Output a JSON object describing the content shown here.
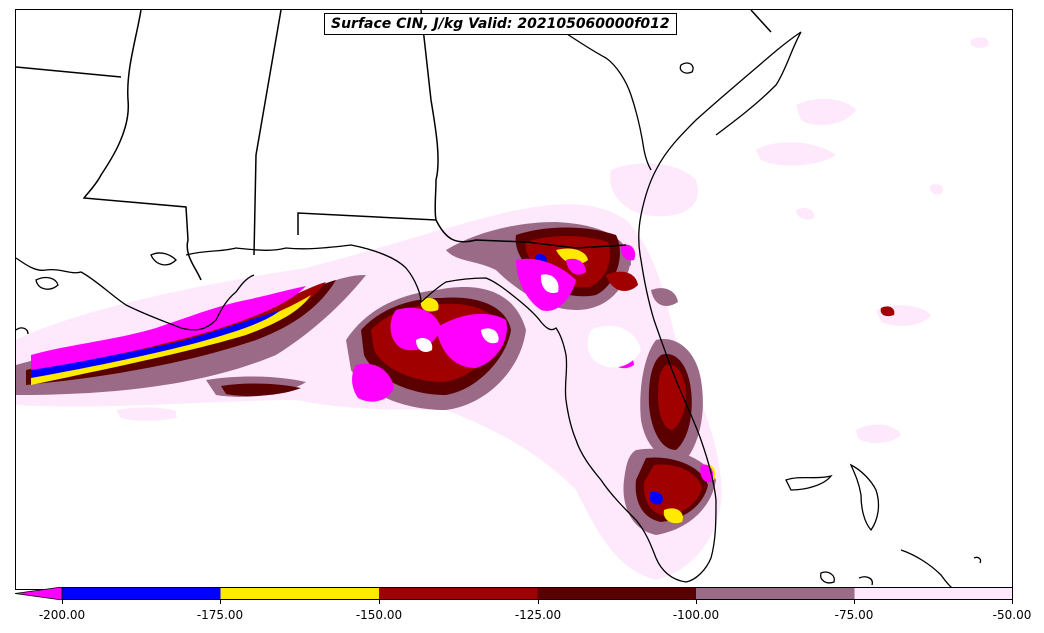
{
  "title": "Surface CIN, J/kg Valid: 202105060000f012",
  "legend": {
    "tick_labels": [
      "-200.00",
      "-175.00",
      "-150.00",
      "-125.00",
      "-100.00",
      "-75.00",
      "-50.00"
    ],
    "colors": [
      "#ff00ff",
      "#0000ff",
      "#ffea00",
      "#a00000",
      "#5a0000",
      "#9a6a86",
      "#fde8fc"
    ]
  },
  "map_colors": {
    "cin_under_200": "#ff00ff",
    "cin_200_175": "#0000ff",
    "cin_175_150": "#ffea00",
    "cin_150_125": "#a00000",
    "cin_125_100": "#5a0000",
    "cin_100_75": "#9a6a86",
    "cin_75_50": "#fde8fc",
    "border": "#000000"
  }
}
